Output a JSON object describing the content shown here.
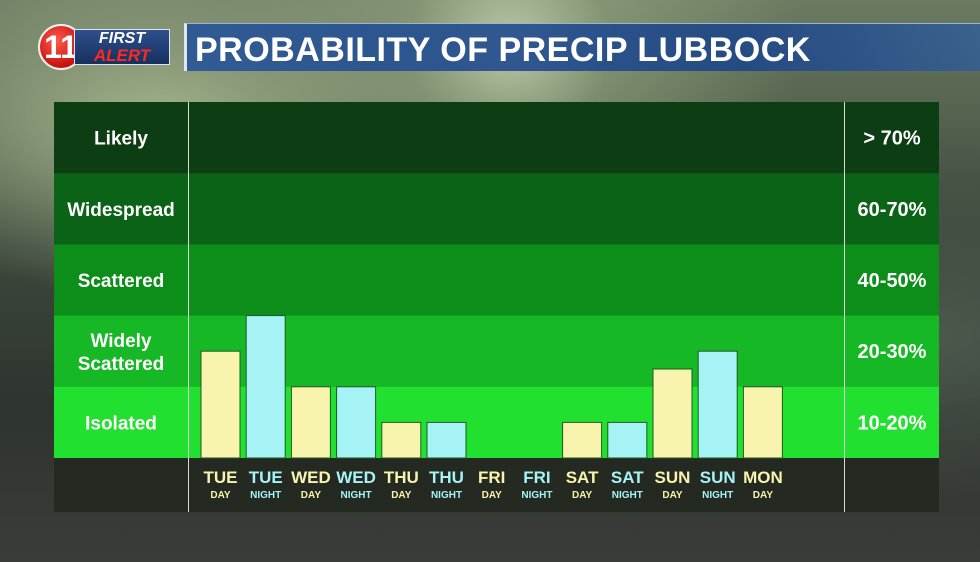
{
  "branding": {
    "logo_number": "11",
    "logo_line1": "FIRST",
    "logo_line2": "ALERT"
  },
  "header": {
    "title": "PROBABILITY OF PRECIP LUBBOCK"
  },
  "colors": {
    "day_bar": "#f8f3ad",
    "night_bar": "#a6f3f6",
    "band_likely": "#0d3d12",
    "band_widespread": "#0b6317",
    "band_scattered": "#0d8e1b",
    "band_widely_scattered": "#16b825",
    "band_isolated": "#22e02f",
    "label_strip": "#242922"
  },
  "chart_data": {
    "type": "bar",
    "title": "PROBABILITY OF PRECIP LUBBOCK",
    "y_scale": "categorical precipitation coverage bands",
    "bands": [
      {
        "name": "Likely",
        "range": "> 70%"
      },
      {
        "name": "Widespread",
        "range": "60-70%"
      },
      {
        "name": "Scattered",
        "range": "40-50%"
      },
      {
        "name": "Widely Scattered",
        "range": "20-30%"
      },
      {
        "name": "Isolated",
        "range": "10-20%"
      }
    ],
    "categories": [
      {
        "day": "TUE",
        "period": "DAY"
      },
      {
        "day": "TUE",
        "period": "NIGHT"
      },
      {
        "day": "WED",
        "period": "DAY"
      },
      {
        "day": "WED",
        "period": "NIGHT"
      },
      {
        "day": "THU",
        "period": "DAY"
      },
      {
        "day": "THU",
        "period": "NIGHT"
      },
      {
        "day": "FRI",
        "period": "DAY"
      },
      {
        "day": "FRI",
        "period": "NIGHT"
      },
      {
        "day": "SAT",
        "period": "DAY"
      },
      {
        "day": "SAT",
        "period": "NIGHT"
      },
      {
        "day": "SUN",
        "period": "DAY"
      },
      {
        "day": "SUN",
        "period": "NIGHT"
      },
      {
        "day": "MON",
        "period": "DAY"
      }
    ],
    "values": [
      25,
      30,
      20,
      20,
      10,
      10,
      0,
      0,
      10,
      10,
      22.5,
      25,
      20
    ],
    "ylim": [
      0,
      100
    ],
    "grid": false,
    "legend": "none"
  }
}
